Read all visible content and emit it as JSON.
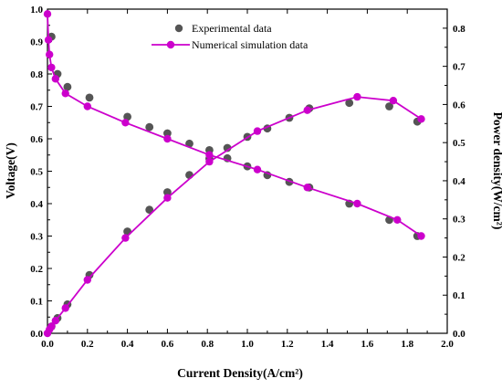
{
  "chart_data": {
    "type": "line",
    "xlabel": "Current Density(A/cm²)",
    "ylabel_left": "Voltage(V)",
    "ylabel_right": "Power density(W/cm²)",
    "xlim": [
      0.0,
      2.0
    ],
    "ylim_left": [
      0.0,
      1.0
    ],
    "ylim_right": [
      0.0,
      0.85
    ],
    "x_ticks": [
      "0.0",
      "0.2",
      "0.4",
      "0.6",
      "0.8",
      "1.0",
      "1.2",
      "1.4",
      "1.6",
      "1.8",
      "2.0"
    ],
    "y_left_ticks": [
      "0.0",
      "0.1",
      "0.2",
      "0.3",
      "0.4",
      "0.5",
      "0.6",
      "0.7",
      "0.8",
      "0.9",
      "1.0"
    ],
    "y_right_ticks": [
      "0.0",
      "0.1",
      "0.2",
      "0.3",
      "0.4",
      "0.5",
      "0.6",
      "0.7",
      "0.8"
    ],
    "grid": false,
    "legend_position": "top-center",
    "colors": {
      "experimental": "#555555",
      "simulation": "#cc00cc",
      "axis": "#000000"
    },
    "series": [
      {
        "name": "Experimental data",
        "style": "markers",
        "axis": "left",
        "x": [
          0.02,
          0.05,
          0.1,
          0.21,
          0.4,
          0.51,
          0.6,
          0.71,
          0.81,
          0.9,
          1.0,
          1.1,
          1.21,
          1.31,
          1.51,
          1.71,
          1.85
        ],
        "y": [
          0.915,
          0.8,
          0.76,
          0.727,
          0.668,
          0.636,
          0.617,
          0.585,
          0.565,
          0.54,
          0.515,
          0.488,
          0.467,
          0.45,
          0.4,
          0.35,
          0.3
        ]
      },
      {
        "name": "Experimental data",
        "style": "markers",
        "axis": "right",
        "x": [
          0.02,
          0.05,
          0.1,
          0.21,
          0.4,
          0.51,
          0.6,
          0.71,
          0.81,
          0.9,
          1.0,
          1.1,
          1.21,
          1.31,
          1.51,
          1.71,
          1.85
        ],
        "y": [
          0.018,
          0.04,
          0.076,
          0.153,
          0.267,
          0.324,
          0.37,
          0.415,
          0.458,
          0.486,
          0.515,
          0.537,
          0.565,
          0.59,
          0.604,
          0.595,
          0.555
        ]
      },
      {
        "name": "Numerical simulation data",
        "style": "line-markers",
        "axis": "left",
        "x": [
          0.0,
          0.005,
          0.01,
          0.02,
          0.04,
          0.09,
          0.2,
          0.39,
          0.6,
          0.81,
          1.05,
          1.3,
          1.55,
          1.75,
          1.87
        ],
        "y": [
          0.985,
          0.905,
          0.86,
          0.82,
          0.785,
          0.74,
          0.7,
          0.65,
          0.6,
          0.55,
          0.505,
          0.45,
          0.4,
          0.35,
          0.3
        ]
      },
      {
        "name": "Numerical simulation data",
        "style": "line-markers",
        "axis": "right",
        "x": [
          0.0,
          0.01,
          0.02,
          0.04,
          0.09,
          0.2,
          0.39,
          0.6,
          0.81,
          1.05,
          1.3,
          1.55,
          1.73,
          1.87
        ],
        "y": [
          0.0,
          0.01,
          0.018,
          0.033,
          0.066,
          0.14,
          0.25,
          0.355,
          0.45,
          0.53,
          0.585,
          0.62,
          0.61,
          0.562
        ]
      }
    ]
  }
}
